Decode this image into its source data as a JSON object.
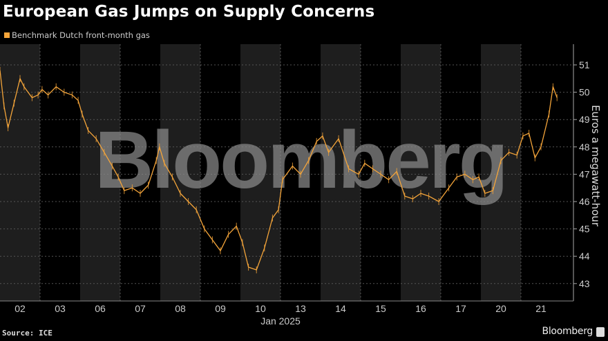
{
  "chart_data": {
    "type": "line",
    "title": "European Gas Jumps on Supply Concerns",
    "legend": [
      "Benchmark Dutch front-month gas"
    ],
    "legend_placement": "top-left",
    "xlabel": "Jan 2025",
    "ylabel": "Euros a megawatt-hour",
    "x_categories": [
      "02",
      "03",
      "06",
      "07",
      "08",
      "09",
      "10",
      "13",
      "14",
      "15",
      "16",
      "17",
      "20",
      "21"
    ],
    "ylim": [
      42.5,
      51.8
    ],
    "y_ticks": [
      43,
      44,
      45,
      46,
      47,
      48,
      49,
      50,
      51
    ],
    "grid": true,
    "series": [
      {
        "name": "Benchmark Dutch front-month gas",
        "color": "#f5a53a",
        "x": [
          0,
          0.1,
          0.2,
          0.35,
          0.5,
          0.6,
          0.8,
          0.95,
          1.05,
          1.2,
          1.4,
          1.6,
          1.8,
          1.95,
          2.05,
          2.2,
          2.4,
          2.6,
          2.8,
          2.95,
          3.1,
          3.3,
          3.5,
          3.7,
          3.9,
          3.98,
          4.1,
          4.3,
          4.5,
          4.7,
          4.9,
          5.1,
          5.3,
          5.5,
          5.7,
          5.9,
          6.05,
          6.2,
          6.4,
          6.6,
          6.8,
          6.95,
          7.05,
          7.3,
          7.5,
          7.7,
          7.9,
          8.05,
          8.2,
          8.45,
          8.7,
          8.95,
          9.1,
          9.3,
          9.5,
          9.7,
          9.9,
          10.1,
          10.3,
          10.5,
          10.7,
          10.95,
          11.2,
          11.4,
          11.6,
          11.8,
          11.95,
          12.1,
          12.3,
          12.5,
          12.7,
          12.9,
          13.05,
          13.2,
          13.35,
          13.5,
          13.7,
          13.8,
          13.9
        ],
        "values": [
          50.8,
          49.5,
          48.7,
          49.6,
          50.5,
          50.2,
          49.8,
          49.9,
          50.1,
          49.9,
          50.2,
          50.0,
          49.9,
          49.7,
          49.2,
          48.6,
          48.3,
          47.8,
          47.3,
          46.9,
          46.4,
          46.5,
          46.3,
          46.6,
          47.5,
          48.0,
          47.4,
          46.9,
          46.3,
          46.0,
          45.7,
          45.0,
          44.6,
          44.2,
          44.8,
          45.1,
          44.5,
          43.6,
          43.5,
          44.3,
          45.4,
          45.7,
          46.8,
          47.3,
          47.0,
          47.5,
          48.2,
          48.4,
          47.8,
          48.3,
          47.2,
          47.0,
          47.4,
          47.2,
          47.0,
          46.8,
          47.1,
          46.2,
          46.1,
          46.3,
          46.2,
          46.0,
          46.5,
          46.9,
          47.0,
          46.8,
          46.9,
          46.3,
          46.4,
          47.5,
          47.8,
          47.7,
          48.4,
          48.5,
          47.6,
          48.0,
          49.2,
          50.2,
          49.8
        ]
      }
    ]
  },
  "watermark": "Bloomberg",
  "footer": {
    "source": "Source: ICE",
    "brand": "Bloomberg"
  }
}
